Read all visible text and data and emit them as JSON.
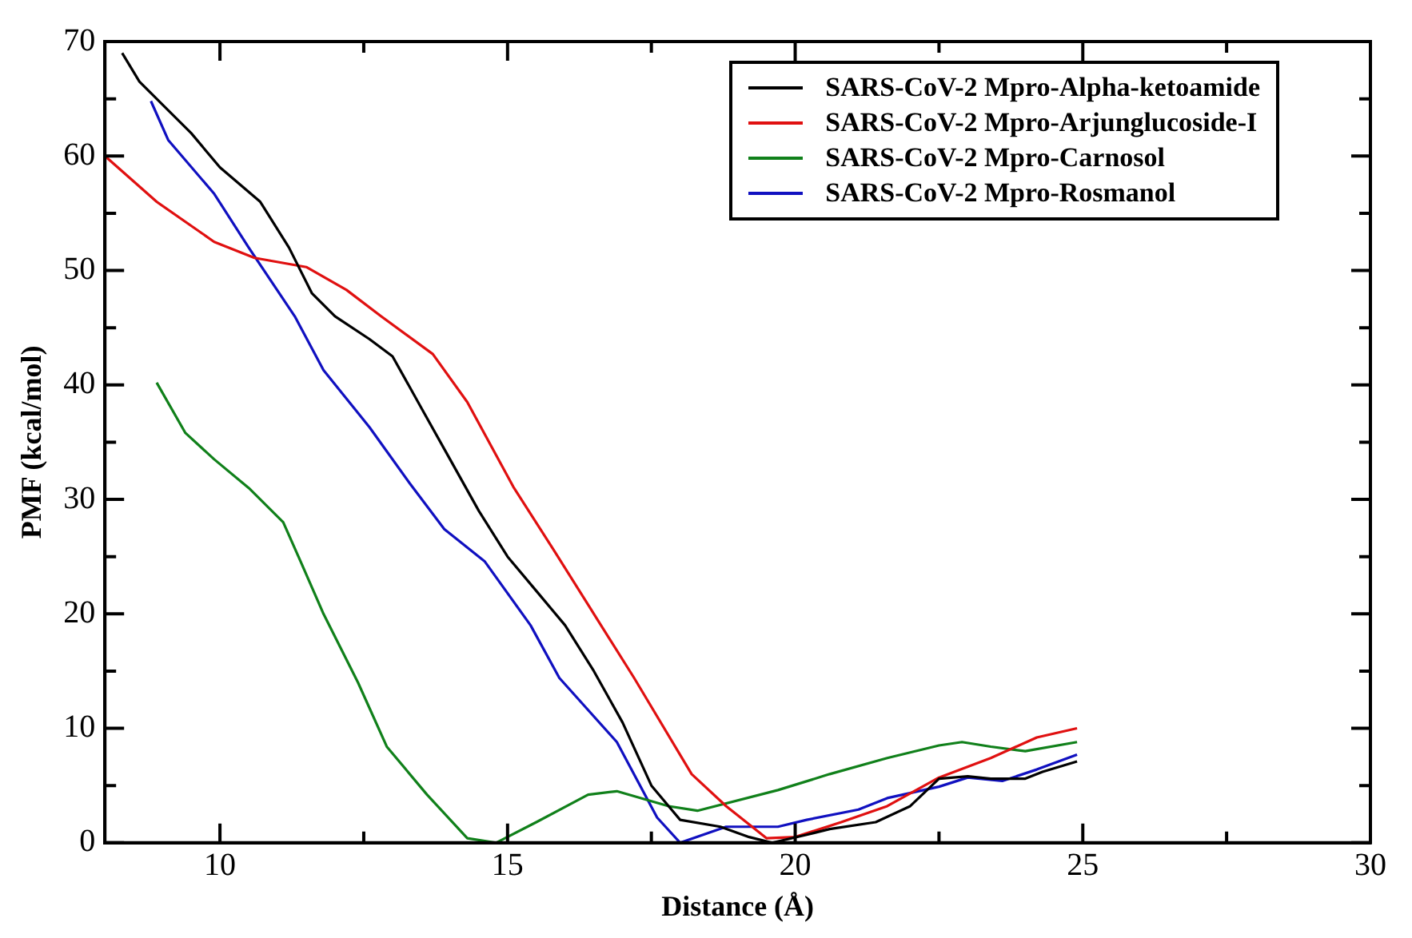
{
  "chart_data": {
    "type": "line",
    "xlabel": "Distance (Å)",
    "ylabel": "PMF (kcal/mol)",
    "xlim": [
      8,
      30
    ],
    "xticks": [
      {
        "value": 10,
        "label": "10"
      },
      {
        "value": 12.5,
        "label": null
      },
      {
        "value": 15,
        "label": "15"
      },
      {
        "value": 17.5,
        "label": null
      },
      {
        "value": 20,
        "label": "20"
      },
      {
        "value": 22.5,
        "label": null
      },
      {
        "value": 25,
        "label": "25"
      },
      {
        "value": 27.5,
        "label": null
      },
      {
        "value": 30,
        "label": "30"
      }
    ],
    "ylim": [
      0,
      70
    ],
    "yticks": [
      {
        "value": 0,
        "label": "0"
      },
      {
        "value": 5,
        "label": null
      },
      {
        "value": 10,
        "label": "10"
      },
      {
        "value": 15,
        "label": null
      },
      {
        "value": 20,
        "label": "20"
      },
      {
        "value": 25,
        "label": null
      },
      {
        "value": 30,
        "label": "30"
      },
      {
        "value": 35,
        "label": null
      },
      {
        "value": 40,
        "label": "40"
      },
      {
        "value": 45,
        "label": null
      },
      {
        "value": 50,
        "label": "50"
      },
      {
        "value": 55,
        "label": null
      },
      {
        "value": 60,
        "label": "60"
      },
      {
        "value": 65,
        "label": null
      },
      {
        "value": 70,
        "label": "70"
      }
    ],
    "legend": "top right",
    "marker": "none",
    "line_style": "solid",
    "series": [
      {
        "name": "SARS-CoV-2 Mpro-Alpha-ketoamide",
        "color": "#000000",
        "x": [
          8.3,
          8.6,
          9,
          9.5,
          10,
          10.7,
          11.2,
          11.6,
          12,
          12.6,
          13,
          13.5,
          14,
          14.5,
          15,
          15.5,
          16,
          16.5,
          17,
          17.5,
          18,
          18.7,
          19.2,
          19.6,
          20.2,
          20.6,
          21.4,
          22,
          22.5,
          23,
          23.4,
          24,
          24.3,
          24.9
        ],
        "values": [
          69,
          66.5,
          64.5,
          62,
          59,
          56,
          52,
          48,
          46,
          44,
          42.5,
          38,
          33.5,
          29,
          25,
          22,
          19,
          15,
          10.5,
          5,
          2,
          1.4,
          0.5,
          0,
          0.7,
          1.2,
          1.8,
          3.2,
          5.6,
          5.8,
          5.6,
          5.6,
          6.2,
          7.1
        ]
      },
      {
        "name": "SARS-CoV-2 Mpro-Arjunglucoside-I",
        "color": "#e01010",
        "x": [
          8,
          8.9,
          9.9,
          10.6,
          11.5,
          12.2,
          12.8,
          13.7,
          14.3,
          15.1,
          15.8,
          16.5,
          17.2,
          18.2,
          18.8,
          19.5,
          20,
          20.8,
          21.6,
          22.5,
          23.4,
          24.2,
          24.9
        ],
        "values": [
          60,
          56,
          52.5,
          51.1,
          50.3,
          48.3,
          46,
          42.7,
          38.5,
          31.1,
          25.6,
          20,
          14.4,
          6,
          3.2,
          0.4,
          0.5,
          1.8,
          3.2,
          5.7,
          7.4,
          9.2,
          10
        ]
      },
      {
        "name": "SARS-CoV-2 Mpro-Carnosol",
        "color": "#10801a",
        "x": [
          8.9,
          9.4,
          9.9,
          10.5,
          11.1,
          11.4,
          11.8,
          12.4,
          12.9,
          13.6,
          14.3,
          14.8,
          15.5,
          16.4,
          16.9,
          17.8,
          18.3,
          19.7,
          20.6,
          21.6,
          22.5,
          22.9,
          23.4,
          24,
          24.9
        ],
        "values": [
          40.2,
          35.8,
          33.5,
          31,
          28,
          24.6,
          20,
          14,
          8.4,
          4.2,
          0.4,
          0,
          1.8,
          4.2,
          4.5,
          3.2,
          2.8,
          4.6,
          6,
          7.4,
          8.5,
          8.8,
          8.4,
          8,
          8.8
        ]
      },
      {
        "name": "SARS-CoV-2 Mpro-Rosmanol",
        "color": "#1010c0",
        "x": [
          8.8,
          9.1,
          9.9,
          10.5,
          11.3,
          11.8,
          12.6,
          13.3,
          13.9,
          14.6,
          15.4,
          15.9,
          16.9,
          17.6,
          18,
          18.8,
          19.7,
          20.2,
          21.1,
          21.6,
          22.5,
          23,
          23.6,
          24.2,
          24.9
        ],
        "values": [
          64.8,
          61.4,
          56.7,
          52,
          46,
          41.3,
          36.3,
          31.4,
          27.4,
          24.6,
          19,
          14.4,
          8.8,
          2.2,
          0,
          1.4,
          1.4,
          2,
          2.9,
          3.9,
          4.9,
          5.7,
          5.4,
          6.4,
          7.7
        ]
      }
    ]
  }
}
